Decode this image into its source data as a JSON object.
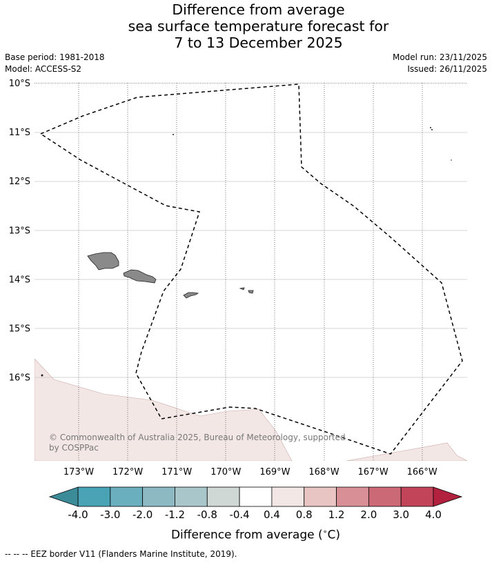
{
  "title": {
    "line1": "Difference from average",
    "line2": "sea surface temperature forecast for",
    "line3": "7 to 13 December 2025"
  },
  "meta": {
    "base_period": "Base period: 1981-2018",
    "model": "Model: ACCESS-S2",
    "model_run": "Model run: 23/11/2025",
    "issued": "Issued: 26/11/2025"
  },
  "map": {
    "lat_labels": [
      "10°S",
      "11°S",
      "12°S",
      "13°S",
      "14°S",
      "15°S",
      "16°S"
    ],
    "lon_labels": [
      "173°W",
      "172°W",
      "171°W",
      "170°W",
      "169°W",
      "168°W",
      "167°W",
      "166°W"
    ],
    "copyright": "© Commonwealth of Australia 2025, Bureau of Meteorology, supported by COSPPac",
    "colors": {
      "land": "#8a8a8a",
      "anomaly_fill": "#f3e7e6"
    }
  },
  "colorbar": {
    "ticks": [
      "-4.0",
      "-3.0",
      "-2.0",
      "-1.2",
      "-0.8",
      "-0.4",
      "0.4",
      "0.8",
      "1.2",
      "2.0",
      "3.0",
      "4.0"
    ],
    "colors": [
      "#4aa3b4",
      "#69afbd",
      "#8db9c3",
      "#a9c7cb",
      "#d0d8d6",
      "#ffffff",
      "#f3e7e6",
      "#e8c5c3",
      "#d98f96",
      "#cc6976",
      "#c14458"
    ],
    "under_color": "#3b8b98",
    "over_color": "#b2213e",
    "label": "Difference from average ($^\\circ$C)"
  },
  "footnote": "-- -- -- EEZ border V11 (Flanders Marine Institute, 2019)."
}
